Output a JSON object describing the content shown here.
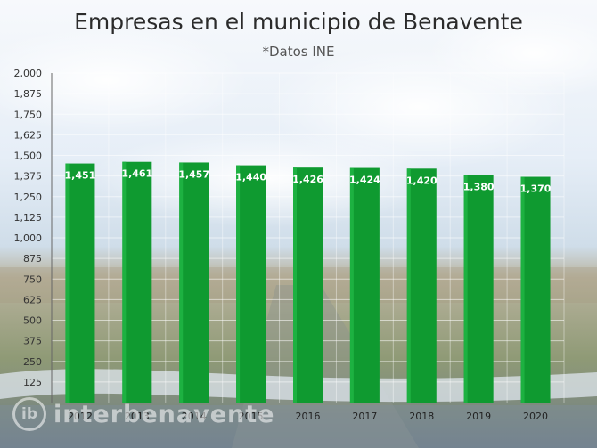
{
  "chart_data": {
    "type": "bar",
    "title": "Empresas en el municipio de Benavente",
    "subtitle": "*Datos INE",
    "categories": [
      "2012",
      "2013",
      "2014",
      "2015",
      "2016",
      "2017",
      "2018",
      "2019",
      "2020"
    ],
    "values": [
      1451,
      1461,
      1457,
      1440,
      1426,
      1424,
      1420,
      1380,
      1370
    ],
    "value_labels": [
      "1,451",
      "1,461",
      "1,457",
      "1,440",
      "1,426",
      "1,424",
      "1,420",
      "1,380",
      "1,370"
    ],
    "yticks": [
      "125",
      "250",
      "375",
      "500",
      "625",
      "750",
      "875",
      "1,000",
      "1,125",
      "1,250",
      "1,375",
      "1,500",
      "1,625",
      "1,750",
      "1,875",
      "2,000"
    ],
    "ytick_values": [
      125,
      250,
      375,
      500,
      625,
      750,
      875,
      1000,
      1125,
      1250,
      1375,
      1500,
      1625,
      1750,
      1875,
      2000
    ],
    "ylim": [
      0,
      2000
    ],
    "xlabel": "",
    "ylabel": "",
    "grid": true,
    "bar_color": "#0f9a30",
    "bar_color_light": "#1db141"
  },
  "watermark": {
    "logo_text": "ib",
    "site_text": "interbenavente"
  }
}
